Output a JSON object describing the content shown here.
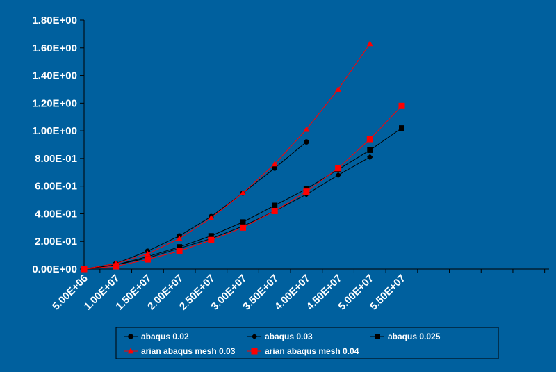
{
  "chart_data": {
    "type": "line",
    "title": "",
    "xlabel": "",
    "ylabel": "",
    "x_tick_labels": [
      "5.00E+06",
      "1.00E+07",
      "1.50E+07",
      "2.00E+07",
      "2.50E+07",
      "3.00E+07",
      "3.50E+07",
      "4.00E+07",
      "4.50E+07",
      "5.00E+07",
      "5.50E+07"
    ],
    "y_tick_labels": [
      "0.00E+00",
      "2.00E-01",
      "4.00E-01",
      "6.00E-01",
      "8.00E-01",
      "1.00E+00",
      "1.20E+00",
      "1.40E+00",
      "1.60E+00",
      "1.80E+00"
    ],
    "ylim": [
      0,
      1.8
    ],
    "grid": false,
    "legend_position": "bottom",
    "series": [
      {
        "name": "abaqus 0.02",
        "color": "#000000",
        "marker": "circle",
        "points": [
          [
            0,
            0
          ],
          [
            1,
            0.04
          ],
          [
            2,
            0.13
          ],
          [
            3,
            0.24
          ],
          [
            4,
            0.38
          ],
          [
            5,
            0.55
          ],
          [
            6,
            0.73
          ],
          [
            7,
            0.92
          ]
        ]
      },
      {
        "name": "abaqus 0.03",
        "color": "#000000",
        "marker": "diamond",
        "points": [
          [
            0,
            0
          ],
          [
            1,
            0.03
          ],
          [
            2,
            0.08
          ],
          [
            3,
            0.15
          ],
          [
            4,
            0.22
          ],
          [
            5,
            0.31
          ],
          [
            6,
            0.42
          ],
          [
            7,
            0.54
          ],
          [
            8,
            0.68
          ],
          [
            9,
            0.81
          ]
        ]
      },
      {
        "name": "abaqus 0.025",
        "color": "#000000",
        "marker": "square",
        "points": [
          [
            0,
            0
          ],
          [
            1,
            0.03
          ],
          [
            2,
            0.09
          ],
          [
            3,
            0.16
          ],
          [
            4,
            0.24
          ],
          [
            5,
            0.34
          ],
          [
            6,
            0.46
          ],
          [
            7,
            0.58
          ],
          [
            8,
            0.72
          ],
          [
            9,
            0.86
          ],
          [
            10,
            1.02
          ]
        ]
      },
      {
        "name": "arian abaqus mesh 0.03",
        "color": "#ff0000",
        "marker": "triangle",
        "points": [
          [
            0,
            0
          ],
          [
            1,
            0.04
          ],
          [
            2,
            0.11
          ],
          [
            3,
            0.22
          ],
          [
            4,
            0.37
          ],
          [
            5,
            0.55
          ],
          [
            6,
            0.76
          ],
          [
            7,
            1.01
          ],
          [
            8,
            1.3
          ],
          [
            9,
            1.63
          ]
        ]
      },
      {
        "name": "arian abaqus mesh 0.04",
        "color": "#ff0000",
        "marker": "square",
        "points": [
          [
            0,
            0
          ],
          [
            1,
            0.02
          ],
          [
            2,
            0.07
          ],
          [
            3,
            0.13
          ],
          [
            4,
            0.21
          ],
          [
            5,
            0.3
          ],
          [
            6,
            0.42
          ],
          [
            7,
            0.56
          ],
          [
            8,
            0.73
          ],
          [
            9,
            0.94
          ],
          [
            10,
            1.18
          ]
        ]
      }
    ]
  }
}
